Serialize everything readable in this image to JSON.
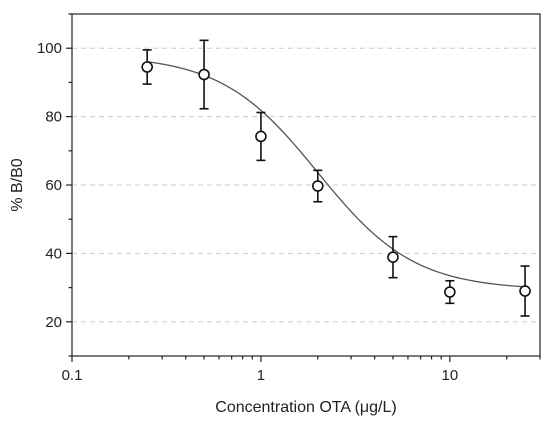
{
  "chart_data": {
    "type": "scatter",
    "xlabel": "Concentration OTA (μg/L)",
    "ylabel": "% B/B0",
    "x_scale": "log",
    "xlim": [
      0.1,
      30
    ],
    "ylim": [
      10,
      110
    ],
    "x_ticks": [
      {
        "value": 0.1,
        "label": "0.1"
      },
      {
        "value": 1,
        "label": "1"
      },
      {
        "value": 10,
        "label": "10"
      }
    ],
    "y_ticks": [
      {
        "value": 20,
        "label": "20"
      },
      {
        "value": 40,
        "label": "40"
      },
      {
        "value": 60,
        "label": "60"
      },
      {
        "value": 80,
        "label": "80"
      },
      {
        "value": 100,
        "label": "100"
      }
    ],
    "grid": "horizontal dashed",
    "series": [
      {
        "x": [
          0.25,
          0.5,
          1,
          2,
          5,
          10,
          25
        ],
        "y": [
          94.5,
          92.3,
          74.2,
          59.7,
          38.9,
          28.7,
          29.0
        ],
        "error": [
          5.0,
          10.0,
          7.0,
          4.6,
          6.0,
          3.3,
          7.3
        ]
      }
    ],
    "fit_curve": {
      "model": "four-parameter logistic",
      "top": 98,
      "bottom": 29.3,
      "ic50": 2.0,
      "hill": 1.7
    },
    "colors": {
      "marks": "#111111",
      "curve": "#555555",
      "grid": "#cccccc"
    }
  }
}
